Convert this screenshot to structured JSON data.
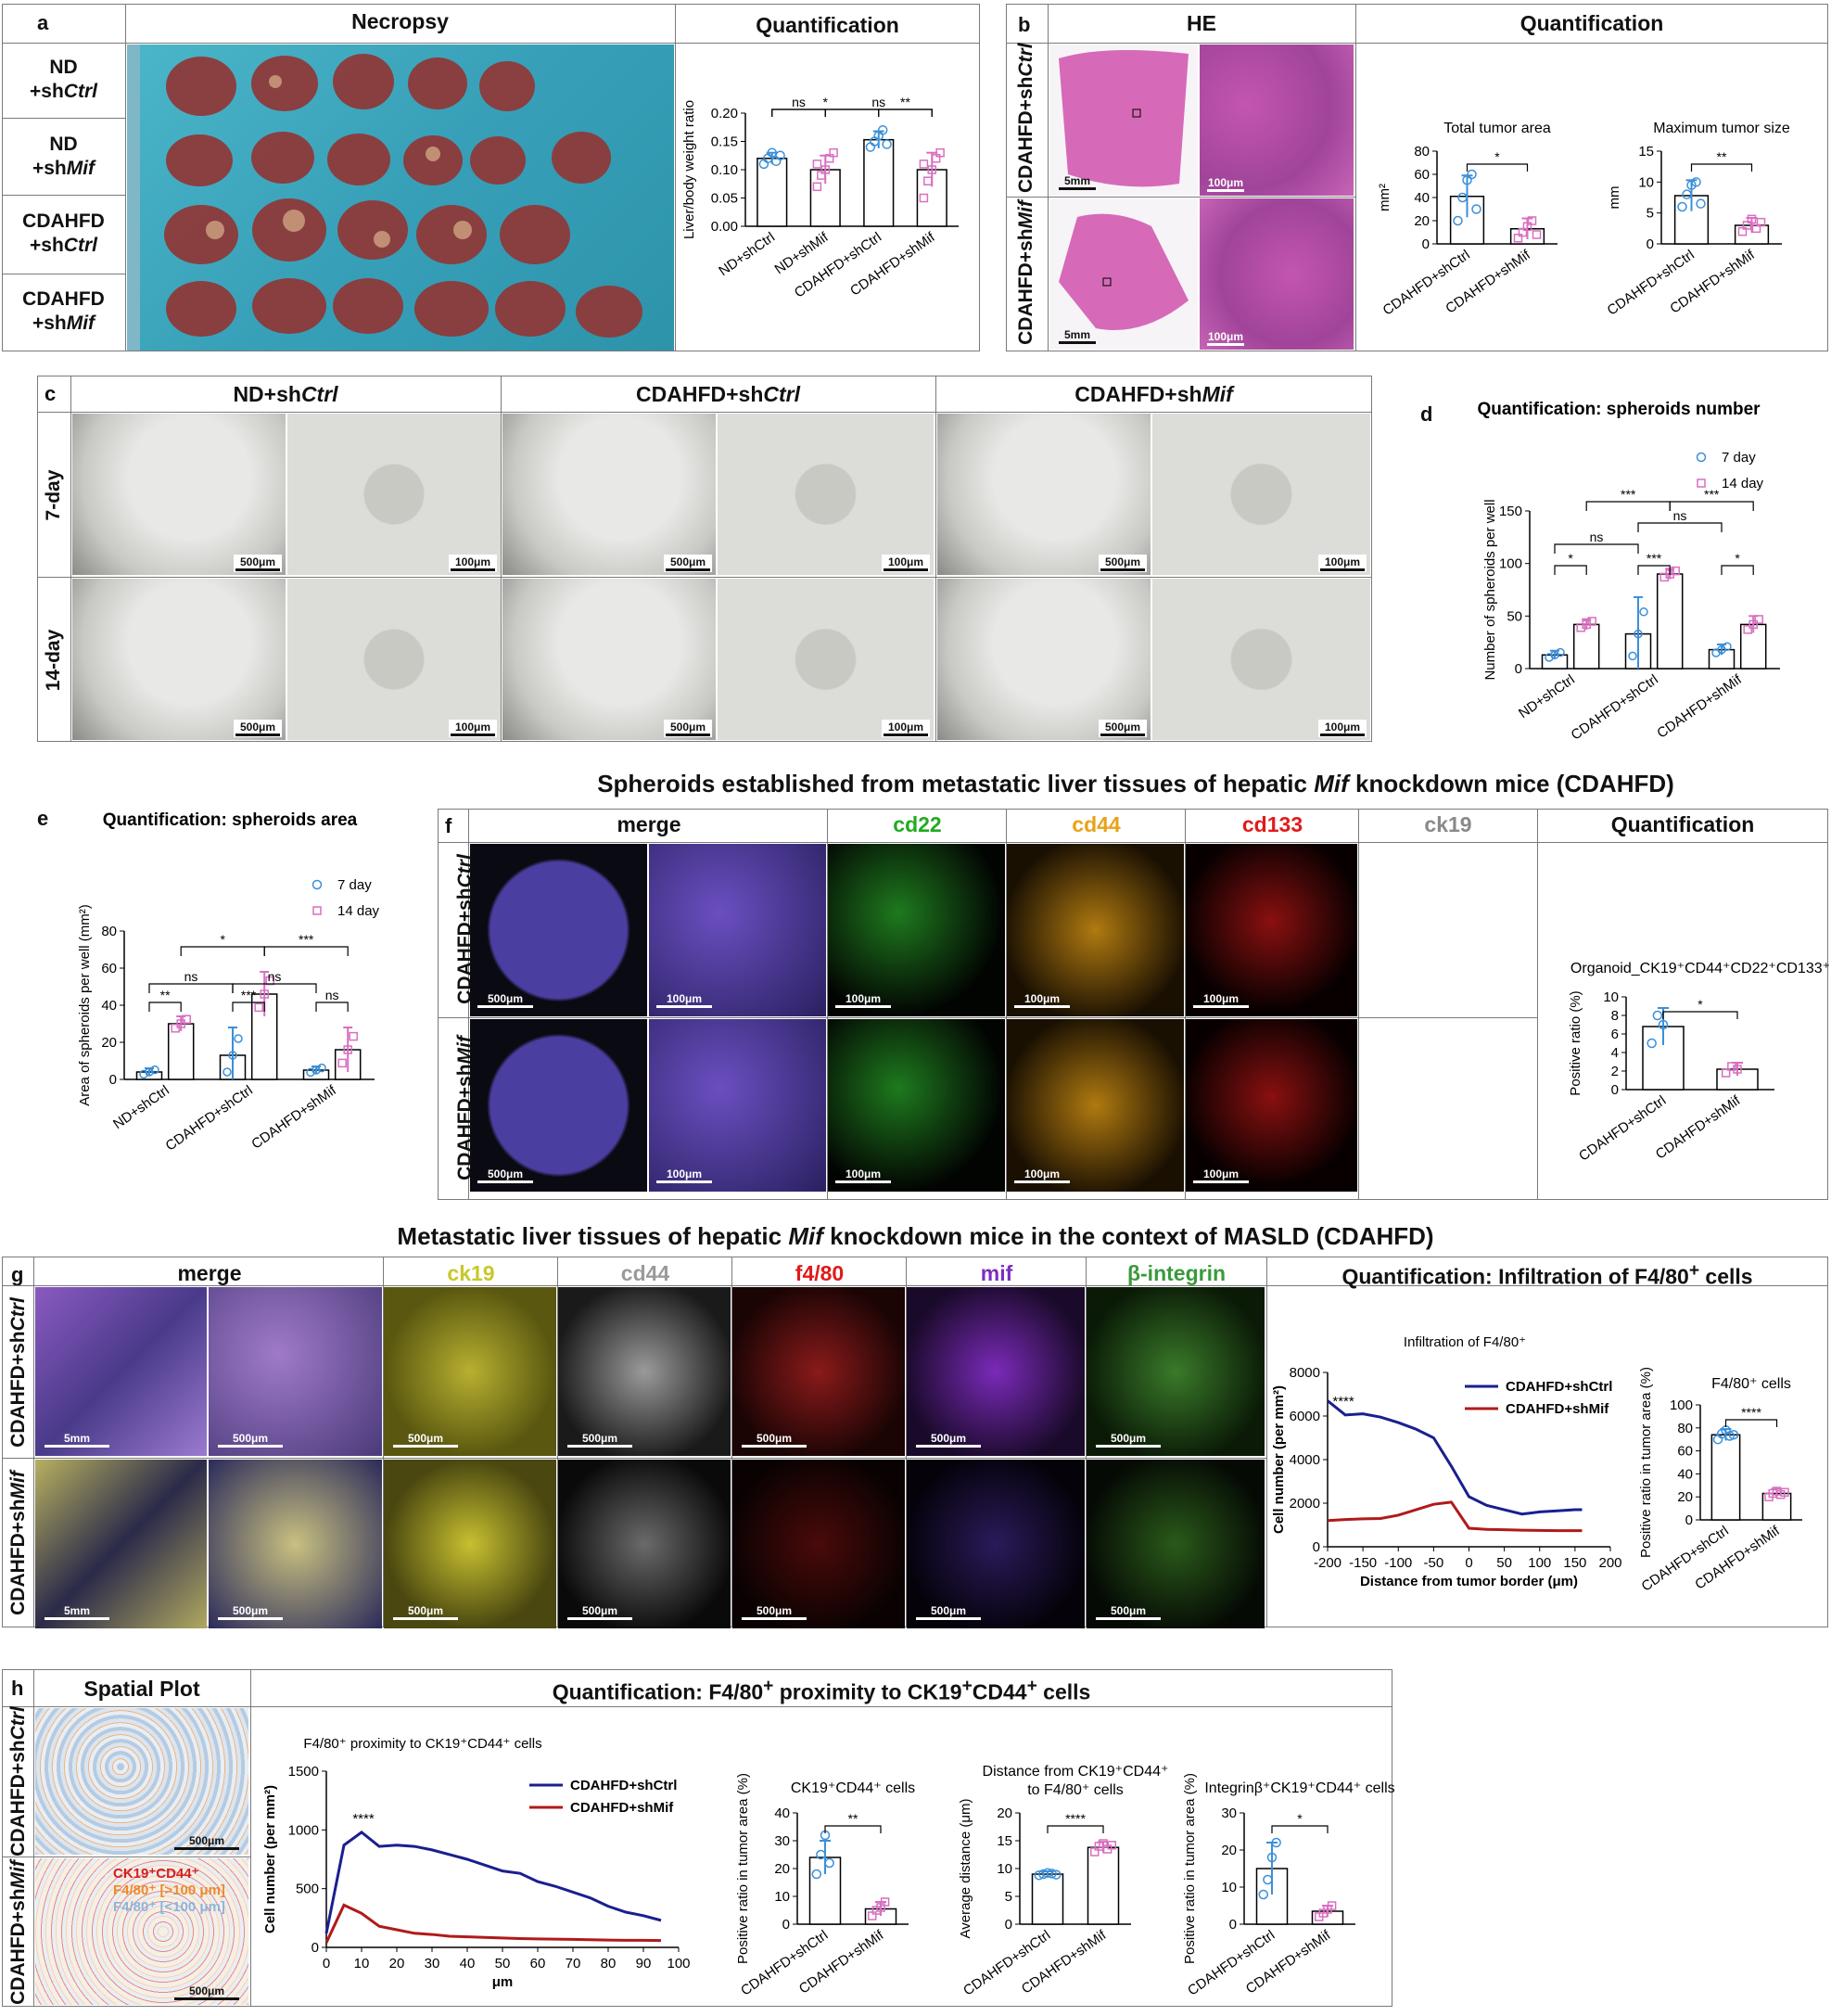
{
  "panel_a": {
    "letter": "a",
    "col_necropsy": "Necropsy",
    "col_quant": "Quantification",
    "rows": [
      {
        "line1": "ND",
        "line2": "+sh",
        "italic": "Ctrl"
      },
      {
        "line1": "ND",
        "line2": "+sh",
        "italic": "Mif"
      },
      {
        "line1": "CDAHFD",
        "line2": "+sh",
        "italic": "Ctrl"
      },
      {
        "line1": "CDAHFD",
        "line2": "+sh",
        "italic": "Mif"
      }
    ]
  },
  "panel_b": {
    "letter": "b",
    "col_he": "HE",
    "col_quant": "Quantification",
    "rows": [
      "CDAHFD+sh",
      "CDAHFD+sh"
    ],
    "row_italic": [
      "Ctrl",
      "Mif"
    ],
    "scale": [
      "5mm",
      "100μm"
    ]
  },
  "panel_c": {
    "letter": "c",
    "cols": [
      {
        "text": "ND+sh",
        "italic": "Ctrl"
      },
      {
        "text": "CDAHFD+sh",
        "italic": "Ctrl"
      },
      {
        "text": "CDAHFD+sh",
        "italic": "Mif"
      }
    ],
    "rows": [
      "7-day",
      "14-day"
    ],
    "scale": [
      "500μm",
      "100μm"
    ]
  },
  "panel_e_letter": "e",
  "panel_d_letter": "d",
  "panel_f": {
    "letter": "f",
    "title_pre": "Spheroids established from metastatic liver tissues of hepatic ",
    "title_italic": "Mif",
    "title_post": " knockdown mice (CDAHFD)",
    "channels": [
      {
        "name": "merge",
        "color": "#111111"
      },
      {
        "name": "cd22",
        "color": "#22aa22"
      },
      {
        "name": "cd44",
        "color": "#e8a317"
      },
      {
        "name": "cd133",
        "color": "#e01b1b"
      },
      {
        "name": "ck19",
        "color": "#8a8a8a"
      },
      {
        "name": "Quantification",
        "color": "#111111"
      }
    ],
    "rows": [
      "CDAHFD+sh",
      "CDAHFD+sh"
    ],
    "row_italic": [
      "Ctrl",
      "Mif"
    ],
    "scale": [
      "500μm",
      "100μm"
    ]
  },
  "panel_g": {
    "letter": "g",
    "title_pre": "Metastatic liver tissues of hepatic ",
    "title_italic": "Mif",
    "title_post": " knockdown mice in the context of MASLD (CDAHFD)",
    "channels": [
      {
        "name": "merge",
        "color": "#111111"
      },
      {
        "name": "ck19",
        "color": "#c8c82a"
      },
      {
        "name": "cd44",
        "color": "#9a9a9a"
      },
      {
        "name": "f4/80",
        "color": "#e01b1b"
      },
      {
        "name": "mif",
        "color": "#7b2fbf"
      },
      {
        "name": "β-integrin",
        "color": "#3a9a3a"
      }
    ],
    "quant_title_pre": "Quantification: Infiltration of F4/80",
    "quant_title_sup": "+",
    "quant_title_post": " cells",
    "rows": [
      "CDAHFD+sh",
      "CDAHFD+sh"
    ],
    "row_italic": [
      "Ctrl",
      "Mif"
    ],
    "scale": [
      "5mm",
      "500μm"
    ]
  },
  "panel_h": {
    "letter": "h",
    "col_spatial": "Spatial Plot",
    "quant_title_pre": "Quantification: F4/80",
    "quant_title_mid": " proximity to CK19",
    "quant_title_mid2": "CD44",
    "quant_title_post": " cells",
    "rows": [
      "CDAHFD+sh",
      "CDAHFD+sh"
    ],
    "row_italic": [
      "Ctrl",
      "Mif"
    ],
    "legend": [
      {
        "text": "CK19⁺CD44⁺",
        "color": "#d42020"
      },
      {
        "text": "F4/80⁺ [>100 μm]",
        "color": "#ee8a2a"
      },
      {
        "text": "F4/80⁺ [<100 μm]",
        "color": "#8fb4d8"
      }
    ],
    "scale": [
      "500μm",
      "500μm"
    ]
  },
  "chart_data": [
    {
      "id": "a_liver_ratio",
      "type": "bar",
      "categories": [
        "ND+shCtrl",
        "ND+shMif",
        "CDAHFD+shCtrl",
        "CDAHFD+shMif"
      ],
      "values": [
        0.12,
        0.1,
        0.153,
        0.1
      ],
      "sd": [
        0.01,
        0.025,
        0.015,
        0.03
      ],
      "points": [
        [
          0.11,
          0.12,
          0.13,
          0.115,
          0.125
        ],
        [
          0.07,
          0.09,
          0.1,
          0.12,
          0.13,
          0.11
        ],
        [
          0.14,
          0.15,
          0.16,
          0.17,
          0.145
        ],
        [
          0.05,
          0.08,
          0.1,
          0.12,
          0.13,
          0.11
        ]
      ],
      "colors": [
        "#3b8fd9",
        "#d96fc0",
        "#3b8fd9",
        "#d96fc0"
      ],
      "ylabel": "Liver/body weight ratio",
      "ylim": [
        0,
        0.2
      ],
      "yticks": [
        "0.00",
        "0.05",
        "0.10",
        "0.15",
        "0.20"
      ],
      "sig": [
        {
          "a": 0,
          "b": 1,
          "t": "ns",
          "lvl": 1
        },
        {
          "a": 0,
          "b": 2,
          "t": "*",
          "lvl": 2
        },
        {
          "a": 2,
          "b": 3,
          "t": "**",
          "lvl": 3
        },
        {
          "a": 1,
          "b": 3,
          "t": "ns",
          "lvl": 4
        }
      ]
    },
    {
      "id": "b_total",
      "type": "bar",
      "title": "Total tumor area",
      "categories": [
        "CDAHFD+shCtrl",
        "CDAHFD+shMif"
      ],
      "values": [
        41,
        13
      ],
      "sd": [
        18,
        9
      ],
      "points": [
        [
          20,
          40,
          55,
          60,
          30
        ],
        [
          5,
          10,
          15,
          20,
          8
        ]
      ],
      "colors": [
        "#3b8fd9",
        "#d96fc0"
      ],
      "ylabel": "mm²",
      "ylim": [
        0,
        80
      ],
      "yticks": [
        "0",
        "20",
        "40",
        "60",
        "80"
      ],
      "sig": [
        {
          "a": 0,
          "b": 1,
          "t": "*",
          "lvl": 1
        }
      ]
    },
    {
      "id": "b_max",
      "type": "bar",
      "title": "Maximum tumor size",
      "categories": [
        "CDAHFD+shCtrl",
        "CDAHFD+shMif"
      ],
      "values": [
        7.8,
        3.0
      ],
      "sd": [
        2.5,
        1.2
      ],
      "points": [
        [
          6,
          8,
          9.5,
          10,
          6.5
        ],
        [
          2,
          3,
          4,
          2.5,
          3.5
        ]
      ],
      "colors": [
        "#3b8fd9",
        "#d96fc0"
      ],
      "ylabel": "mm",
      "ylim": [
        0,
        15
      ],
      "yticks": [
        "0",
        "5",
        "10",
        "15"
      ],
      "sig": [
        {
          "a": 0,
          "b": 1,
          "t": "**",
          "lvl": 1
        }
      ]
    },
    {
      "id": "d_number",
      "type": "bar",
      "title": "Quantification: spheroids number",
      "groups": [
        "ND+shCtrl",
        "CDAHFD+shCtrl",
        "CDAHFD+shMif"
      ],
      "series": [
        {
          "name": "7 day",
          "values": [
            13,
            33,
            18
          ],
          "color": "#3b8fd9"
        },
        {
          "name": "14 day",
          "values": [
            42,
            90,
            42
          ],
          "color": "#d96fc0"
        }
      ],
      "sd": [
        [
          4,
          5
        ],
        [
          35,
          5
        ],
        [
          5,
          8
        ]
      ],
      "ylabel": "Number of spheroids per well",
      "ylim": [
        0,
        150
      ],
      "yticks": [
        "0",
        "50",
        "100",
        "150"
      ],
      "sig": [
        {
          "g1": 0,
          "s1": 0,
          "g2": 0,
          "s2": 1,
          "t": "*",
          "lvl": 1
        },
        {
          "g1": 1,
          "s1": 0,
          "g2": 1,
          "s2": 1,
          "t": "***",
          "lvl": 1
        },
        {
          "g1": 2,
          "s1": 0,
          "g2": 2,
          "s2": 1,
          "t": "*",
          "lvl": 1
        },
        {
          "g1": 0,
          "s1": 0,
          "g2": 1,
          "s2": 0,
          "t": "ns",
          "lvl": 2
        },
        {
          "g1": 1,
          "s1": 0,
          "g2": 2,
          "s2": 0,
          "t": "ns",
          "lvl": 3
        },
        {
          "g1": 0,
          "s1": 1,
          "g2": 1,
          "s2": 1,
          "t": "***",
          "lvl": 4
        },
        {
          "g1": 1,
          "s1": 1,
          "g2": 2,
          "s2": 1,
          "t": "***",
          "lvl": 4
        }
      ]
    },
    {
      "id": "e_area",
      "type": "bar",
      "title": "Quantification: spheroids area",
      "groups": [
        "ND+shCtrl",
        "CDAHFD+shCtrl",
        "CDAHFD+shMif"
      ],
      "series": [
        {
          "name": "7 day",
          "values": [
            4,
            13,
            5
          ],
          "color": "#3b8fd9"
        },
        {
          "name": "14 day",
          "values": [
            30,
            46,
            16
          ],
          "color": "#d96fc0"
        }
      ],
      "sd": [
        [
          2,
          4
        ],
        [
          15,
          12
        ],
        [
          2,
          12
        ]
      ],
      "ylabel": "Area of spheroids per well (mm²)",
      "ylim": [
        0,
        80
      ],
      "yticks": [
        "0",
        "20",
        "40",
        "60",
        "80"
      ],
      "sig": [
        {
          "g1": 0,
          "s1": 0,
          "g2": 0,
          "s2": 1,
          "t": "**",
          "lvl": 1
        },
        {
          "g1": 1,
          "s1": 0,
          "g2": 1,
          "s2": 1,
          "t": "***",
          "lvl": 1
        },
        {
          "g1": 2,
          "s1": 0,
          "g2": 2,
          "s2": 1,
          "t": "ns",
          "lvl": 1
        },
        {
          "g1": 0,
          "s1": 0,
          "g2": 1,
          "s2": 0,
          "t": "ns",
          "lvl": 2
        },
        {
          "g1": 1,
          "s1": 0,
          "g2": 2,
          "s2": 0,
          "t": "ns",
          "lvl": 2
        },
        {
          "g1": 0,
          "s1": 1,
          "g2": 1,
          "s2": 1,
          "t": "*",
          "lvl": 4
        },
        {
          "g1": 1,
          "s1": 1,
          "g2": 2,
          "s2": 1,
          "t": "***",
          "lvl": 4
        }
      ]
    },
    {
      "id": "f_ratio",
      "type": "bar",
      "title": "Organoid_CK19⁺CD44⁺CD22⁺CD133⁺",
      "categories": [
        "CDAHFD+shCtrl",
        "CDAHFD+shMif"
      ],
      "values": [
        6.8,
        2.2
      ],
      "sd": [
        2.0,
        0.7
      ],
      "points": [
        [
          5,
          8,
          7
        ],
        [
          1.8,
          2.5,
          2.2
        ]
      ],
      "colors": [
        "#3b8fd9",
        "#d96fc0"
      ],
      "ylabel": "Positive ratio (%)",
      "ylim": [
        0,
        10
      ],
      "yticks": [
        "0",
        "2",
        "4",
        "6",
        "8",
        "10"
      ],
      "sig": [
        {
          "a": 0,
          "b": 1,
          "t": "*",
          "lvl": 1
        }
      ]
    },
    {
      "id": "g_line",
      "type": "line",
      "title": "Infiltration of F4/80⁺",
      "x": [
        -200,
        -175,
        -150,
        -125,
        -100,
        -75,
        -50,
        -25,
        0,
        25,
        50,
        75,
        100,
        125,
        150,
        160
      ],
      "series": [
        {
          "name": "CDAHFD+shCtrl",
          "color": "#1a1f8f",
          "values": [
            6700,
            6050,
            6100,
            5950,
            5700,
            5400,
            5000,
            3700,
            2300,
            1900,
            1700,
            1500,
            1600,
            1650,
            1700,
            1700
          ]
        },
        {
          "name": "CDAHFD+shMif",
          "color": "#b01a1a",
          "values": [
            1200,
            1250,
            1280,
            1300,
            1450,
            1700,
            1950,
            2050,
            850,
            800,
            780,
            760,
            750,
            740,
            740,
            740
          ]
        }
      ],
      "xlabel": "Distance from tumor border (μm)",
      "ylabel": "Cell number (per mm²)",
      "xlim": [
        -200,
        200
      ],
      "ylim": [
        0,
        8000
      ],
      "xticks": [
        "-200",
        "-150",
        "-100",
        "-50",
        "0",
        "50",
        "100",
        "150",
        "200"
      ],
      "yticks": [
        "0",
        "2000",
        "4000",
        "6000",
        "8000"
      ],
      "annot": "****"
    },
    {
      "id": "g_bar",
      "type": "bar",
      "title": "F4/80⁺ cells",
      "categories": [
        "CDAHFD+shCtrl",
        "CDAHFD+shMif"
      ],
      "values": [
        74,
        23
      ],
      "sd": [
        5,
        4
      ],
      "points": [
        [
          70,
          75,
          78,
          73,
          74
        ],
        [
          20,
          23,
          25,
          22,
          24
        ]
      ],
      "colors": [
        "#3b8fd9",
        "#d96fc0"
      ],
      "ylabel": "Positive ratio in tumor area (%)",
      "ylim": [
        0,
        100
      ],
      "yticks": [
        "0",
        "20",
        "40",
        "60",
        "80",
        "100"
      ],
      "sig": [
        {
          "a": 0,
          "b": 1,
          "t": "****",
          "lvl": 1
        }
      ]
    },
    {
      "id": "h_line",
      "type": "line",
      "title": "F4/80⁺ proximity to CK19⁺CD44⁺ cells",
      "x": [
        0,
        5,
        10,
        15,
        20,
        25,
        30,
        35,
        40,
        45,
        50,
        55,
        60,
        65,
        70,
        75,
        80,
        85,
        90,
        95
      ],
      "series": [
        {
          "name": "CDAHFD+shCtrl",
          "color": "#1a1f8f",
          "values": [
            120,
            870,
            980,
            860,
            870,
            860,
            830,
            790,
            750,
            700,
            650,
            630,
            560,
            520,
            470,
            420,
            350,
            300,
            270,
            230
          ]
        },
        {
          "name": "CDAHFD+shMif",
          "color": "#b01a1a",
          "values": [
            40,
            360,
            290,
            180,
            150,
            120,
            110,
            95,
            90,
            85,
            80,
            75,
            72,
            70,
            68,
            65,
            62,
            60,
            60,
            58
          ]
        }
      ],
      "xlabel": "μm",
      "ylabel": "Cell number (per mm²)",
      "xlim": [
        0,
        100
      ],
      "ylim": [
        0,
        1500
      ],
      "xticks": [
        "0",
        "10",
        "20",
        "30",
        "40",
        "50",
        "60",
        "70",
        "80",
        "90",
        "100"
      ],
      "yticks": [
        "0",
        "500",
        "1000",
        "1500"
      ],
      "annot": "****"
    },
    {
      "id": "h_bar1",
      "type": "bar",
      "title": "CK19⁺CD44⁺ cells",
      "categories": [
        "CDAHFD+shCtrl",
        "CDAHFD+shMif"
      ],
      "values": [
        24,
        5.5
      ],
      "sd": [
        6,
        2.5
      ],
      "points": [
        [
          18,
          25,
          32,
          22
        ],
        [
          3,
          5,
          6,
          8
        ]
      ],
      "colors": [
        "#3b8fd9",
        "#d96fc0"
      ],
      "ylabel": "Positive ratio in tumor area (%)",
      "ylim": [
        0,
        40
      ],
      "yticks": [
        "0",
        "10",
        "20",
        "30",
        "40"
      ],
      "sig": [
        {
          "a": 0,
          "b": 1,
          "t": "**",
          "lvl": 1
        }
      ]
    },
    {
      "id": "h_bar2",
      "type": "bar",
      "title": "Distance from CK19⁺CD44⁺ to F4/80⁺ cells",
      "categories": [
        "CDAHFD+shCtrl",
        "CDAHFD+shMif"
      ],
      "values": [
        9,
        13.8
      ],
      "sd": [
        0.5,
        1
      ],
      "points": [
        [
          8.8,
          9,
          9.2,
          9.1,
          8.9
        ],
        [
          13,
          14,
          14.5,
          13.5,
          14.2
        ]
      ],
      "colors": [
        "#3b8fd9",
        "#d96fc0"
      ],
      "ylabel": "Average distance (μm)",
      "ylim": [
        0,
        20
      ],
      "yticks": [
        "0",
        "5",
        "10",
        "15",
        "20"
      ],
      "sig": [
        {
          "a": 0,
          "b": 1,
          "t": "****",
          "lvl": 1
        }
      ]
    },
    {
      "id": "h_bar3",
      "type": "bar",
      "title": "Integrinβ⁺CK19⁺CD44⁺ cells",
      "categories": [
        "CDAHFD+shCtrl",
        "CDAHFD+shMif"
      ],
      "values": [
        15,
        3.5
      ],
      "sd": [
        7,
        1.5
      ],
      "points": [
        [
          8,
          12,
          18,
          22
        ],
        [
          2,
          3,
          4,
          5
        ]
      ],
      "colors": [
        "#3b8fd9",
        "#d96fc0"
      ],
      "ylabel": "Positive ratio in tumor area (%)",
      "ylim": [
        0,
        30
      ],
      "yticks": [
        "0",
        "10",
        "20",
        "30"
      ],
      "sig": [
        {
          "a": 0,
          "b": 1,
          "t": "*",
          "lvl": 1
        }
      ]
    }
  ]
}
